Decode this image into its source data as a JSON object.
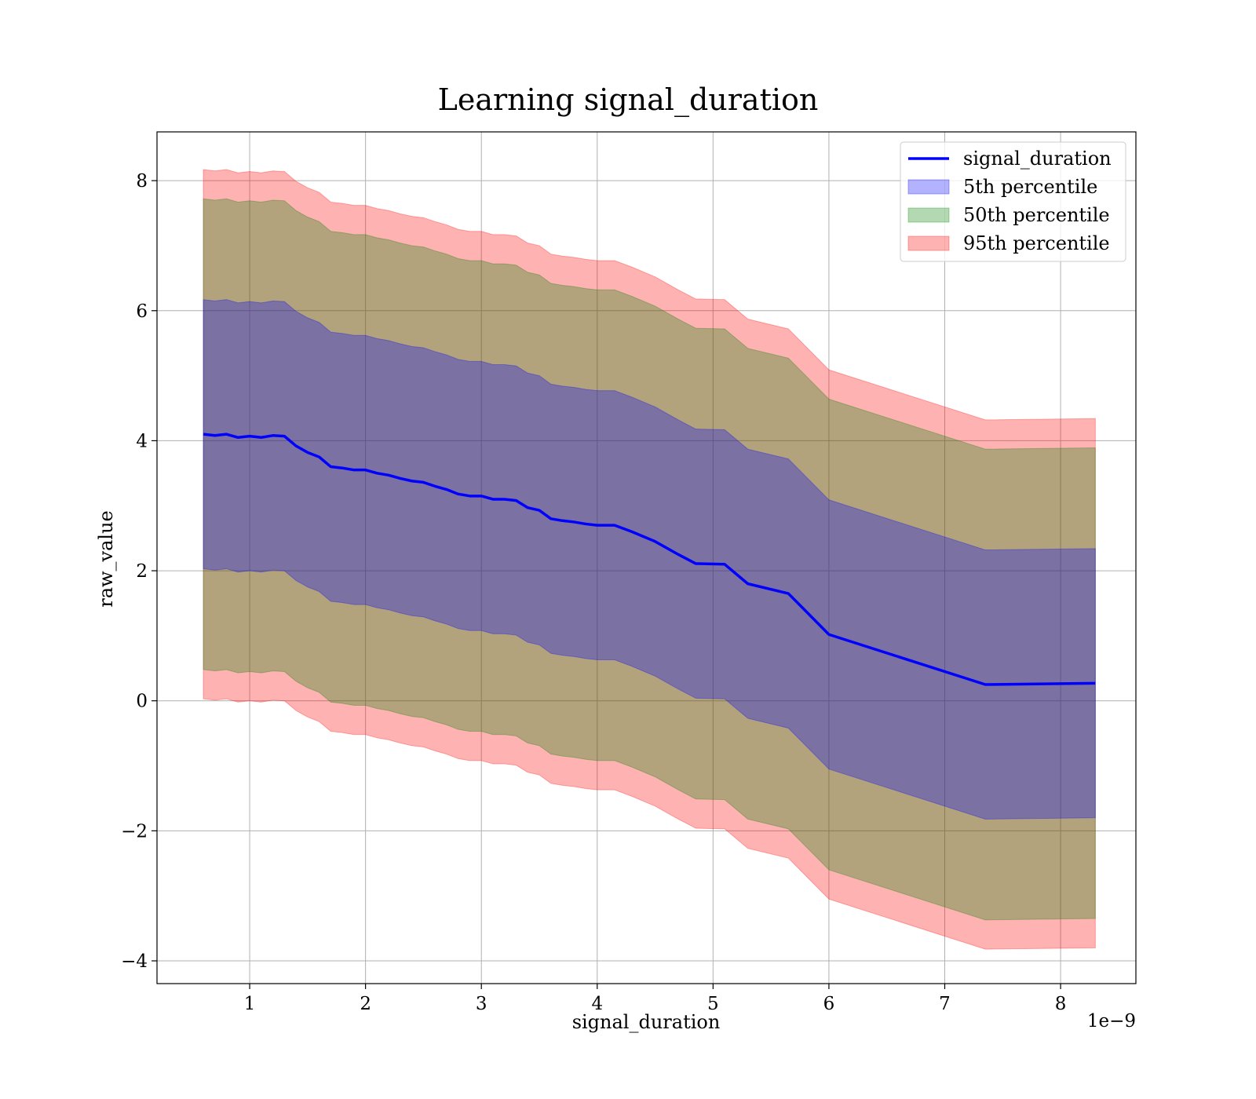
{
  "chart_data": {
    "type": "area",
    "title": "Learning signal_duration",
    "xlabel": "signal_duration",
    "ylabel": "raw_value",
    "x_offset_text": "1e−9",
    "x_scale": 1e-09,
    "xlim": [
      0.2,
      8.65
    ],
    "ylim": [
      -4.35,
      8.75
    ],
    "xticks": [
      1,
      2,
      3,
      4,
      5,
      6,
      7,
      8
    ],
    "yticks": [
      -4,
      -2,
      0,
      2,
      4,
      6,
      8
    ],
    "ytick_labels": [
      "−4",
      "−2",
      "0",
      "2",
      "4",
      "6",
      "8"
    ],
    "grid": true,
    "legend_position": "top-right",
    "x": [
      0.6,
      0.7,
      0.8,
      0.9,
      1.0,
      1.1,
      1.2,
      1.3,
      1.4,
      1.5,
      1.6,
      1.7,
      1.8,
      1.9,
      2.0,
      2.1,
      2.2,
      2.3,
      2.4,
      2.5,
      2.6,
      2.7,
      2.8,
      2.9,
      3.0,
      3.1,
      3.2,
      3.3,
      3.4,
      3.5,
      3.6,
      3.7,
      3.8,
      3.9,
      4.0,
      4.15,
      4.3,
      4.5,
      4.7,
      4.85,
      5.1,
      5.3,
      5.65,
      6.0,
      7.35,
      8.3
    ],
    "series": [
      {
        "name": "signal_duration",
        "kind": "line",
        "color": "#0000ff",
        "values": [
          4.1,
          4.08,
          4.1,
          4.05,
          4.07,
          4.05,
          4.08,
          4.07,
          3.92,
          3.82,
          3.75,
          3.6,
          3.58,
          3.55,
          3.55,
          3.5,
          3.47,
          3.42,
          3.38,
          3.36,
          3.3,
          3.25,
          3.18,
          3.15,
          3.15,
          3.1,
          3.1,
          3.08,
          2.97,
          2.93,
          2.8,
          2.77,
          2.75,
          2.72,
          2.7,
          2.7,
          2.6,
          2.45,
          2.25,
          2.11,
          2.1,
          1.8,
          1.65,
          1.02,
          0.25,
          0.27
        ]
      },
      {
        "name": "5th percentile",
        "kind": "band",
        "color": "#0000ff",
        "half_width": 2.07
      },
      {
        "name": "50th percentile",
        "kind": "band",
        "color": "#008000",
        "half_width": 3.62
      },
      {
        "name": "95th percentile",
        "kind": "band",
        "color": "#ff0000",
        "half_width": 4.07
      }
    ]
  }
}
